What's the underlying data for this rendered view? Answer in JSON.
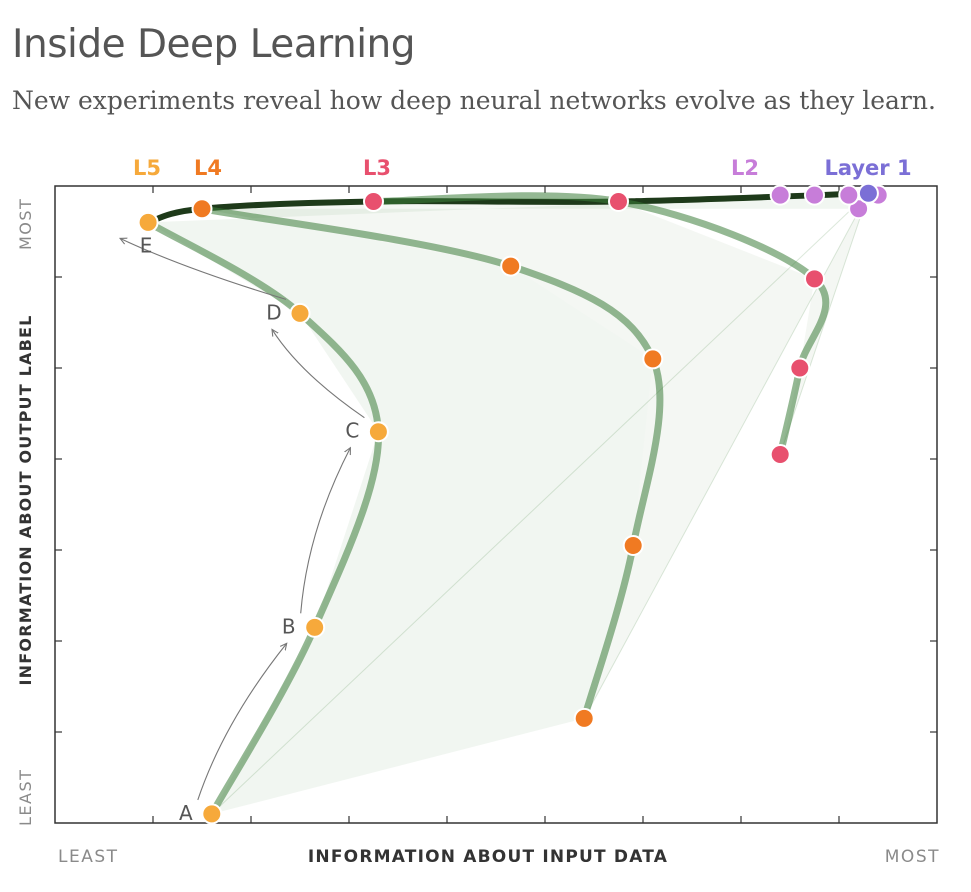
{
  "header": {
    "title": "Inside Deep Learning",
    "subtitle": "New experiments reveal how deep neural networks evolve as they learn."
  },
  "chart_data": {
    "type": "line",
    "xlabel": "INFORMATION ABOUT INPUT DATA",
    "ylabel": "INFORMATION ABOUT OUTPUT LABEL",
    "x_tick_labels": {
      "least": "LEAST",
      "most": "MOST"
    },
    "y_tick_labels": {
      "least": "LEAST",
      "most": "MOST"
    },
    "xlim": [
      0,
      9
    ],
    "ylim": [
      0,
      7
    ],
    "grid": false,
    "colors": {
      "L1": "#7b6fd6",
      "L2": "#c77dd9",
      "L3": "#e8506e",
      "L4": "#f07a22",
      "L5": "#f6a93b",
      "trajectory": "#3d7d3a"
    },
    "layer_labels": [
      {
        "key": "L5",
        "text": "L5"
      },
      {
        "key": "L4",
        "text": "L4"
      },
      {
        "key": "L3",
        "text": "L3"
      },
      {
        "key": "L2",
        "text": "L2"
      },
      {
        "key": "L1",
        "text": "Layer 1"
      }
    ],
    "series": [
      {
        "name": "L5",
        "points": [
          [
            1.6,
            0.1
          ],
          [
            2.65,
            2.15
          ],
          [
            3.3,
            4.3
          ],
          [
            2.5,
            5.6
          ],
          [
            0.95,
            6.6
          ]
        ],
        "point_labels": [
          "A",
          "B",
          "C",
          "D",
          "E"
        ]
      },
      {
        "name": "L4",
        "points": [
          [
            5.4,
            1.15
          ],
          [
            5.9,
            3.05
          ],
          [
            6.1,
            5.1
          ],
          [
            4.65,
            6.12
          ],
          [
            1.5,
            6.75
          ]
        ]
      },
      {
        "name": "L3",
        "points": [
          [
            7.4,
            4.05
          ],
          [
            7.6,
            5.0
          ],
          [
            7.75,
            5.98
          ],
          [
            5.75,
            6.83
          ],
          [
            3.25,
            6.83
          ]
        ]
      },
      {
        "name": "L2",
        "points": [
          [
            8.2,
            6.75
          ],
          [
            8.4,
            6.9
          ],
          [
            8.1,
            6.9
          ],
          [
            7.75,
            6.9
          ],
          [
            7.4,
            6.9
          ]
        ]
      },
      {
        "name": "L1",
        "points": [
          [
            8.3,
            6.92
          ]
        ]
      }
    ],
    "annotation_arrows": [
      [
        "A",
        "B"
      ],
      [
        "B",
        "C"
      ],
      [
        "C",
        "D"
      ],
      [
        "D",
        "E"
      ]
    ]
  }
}
